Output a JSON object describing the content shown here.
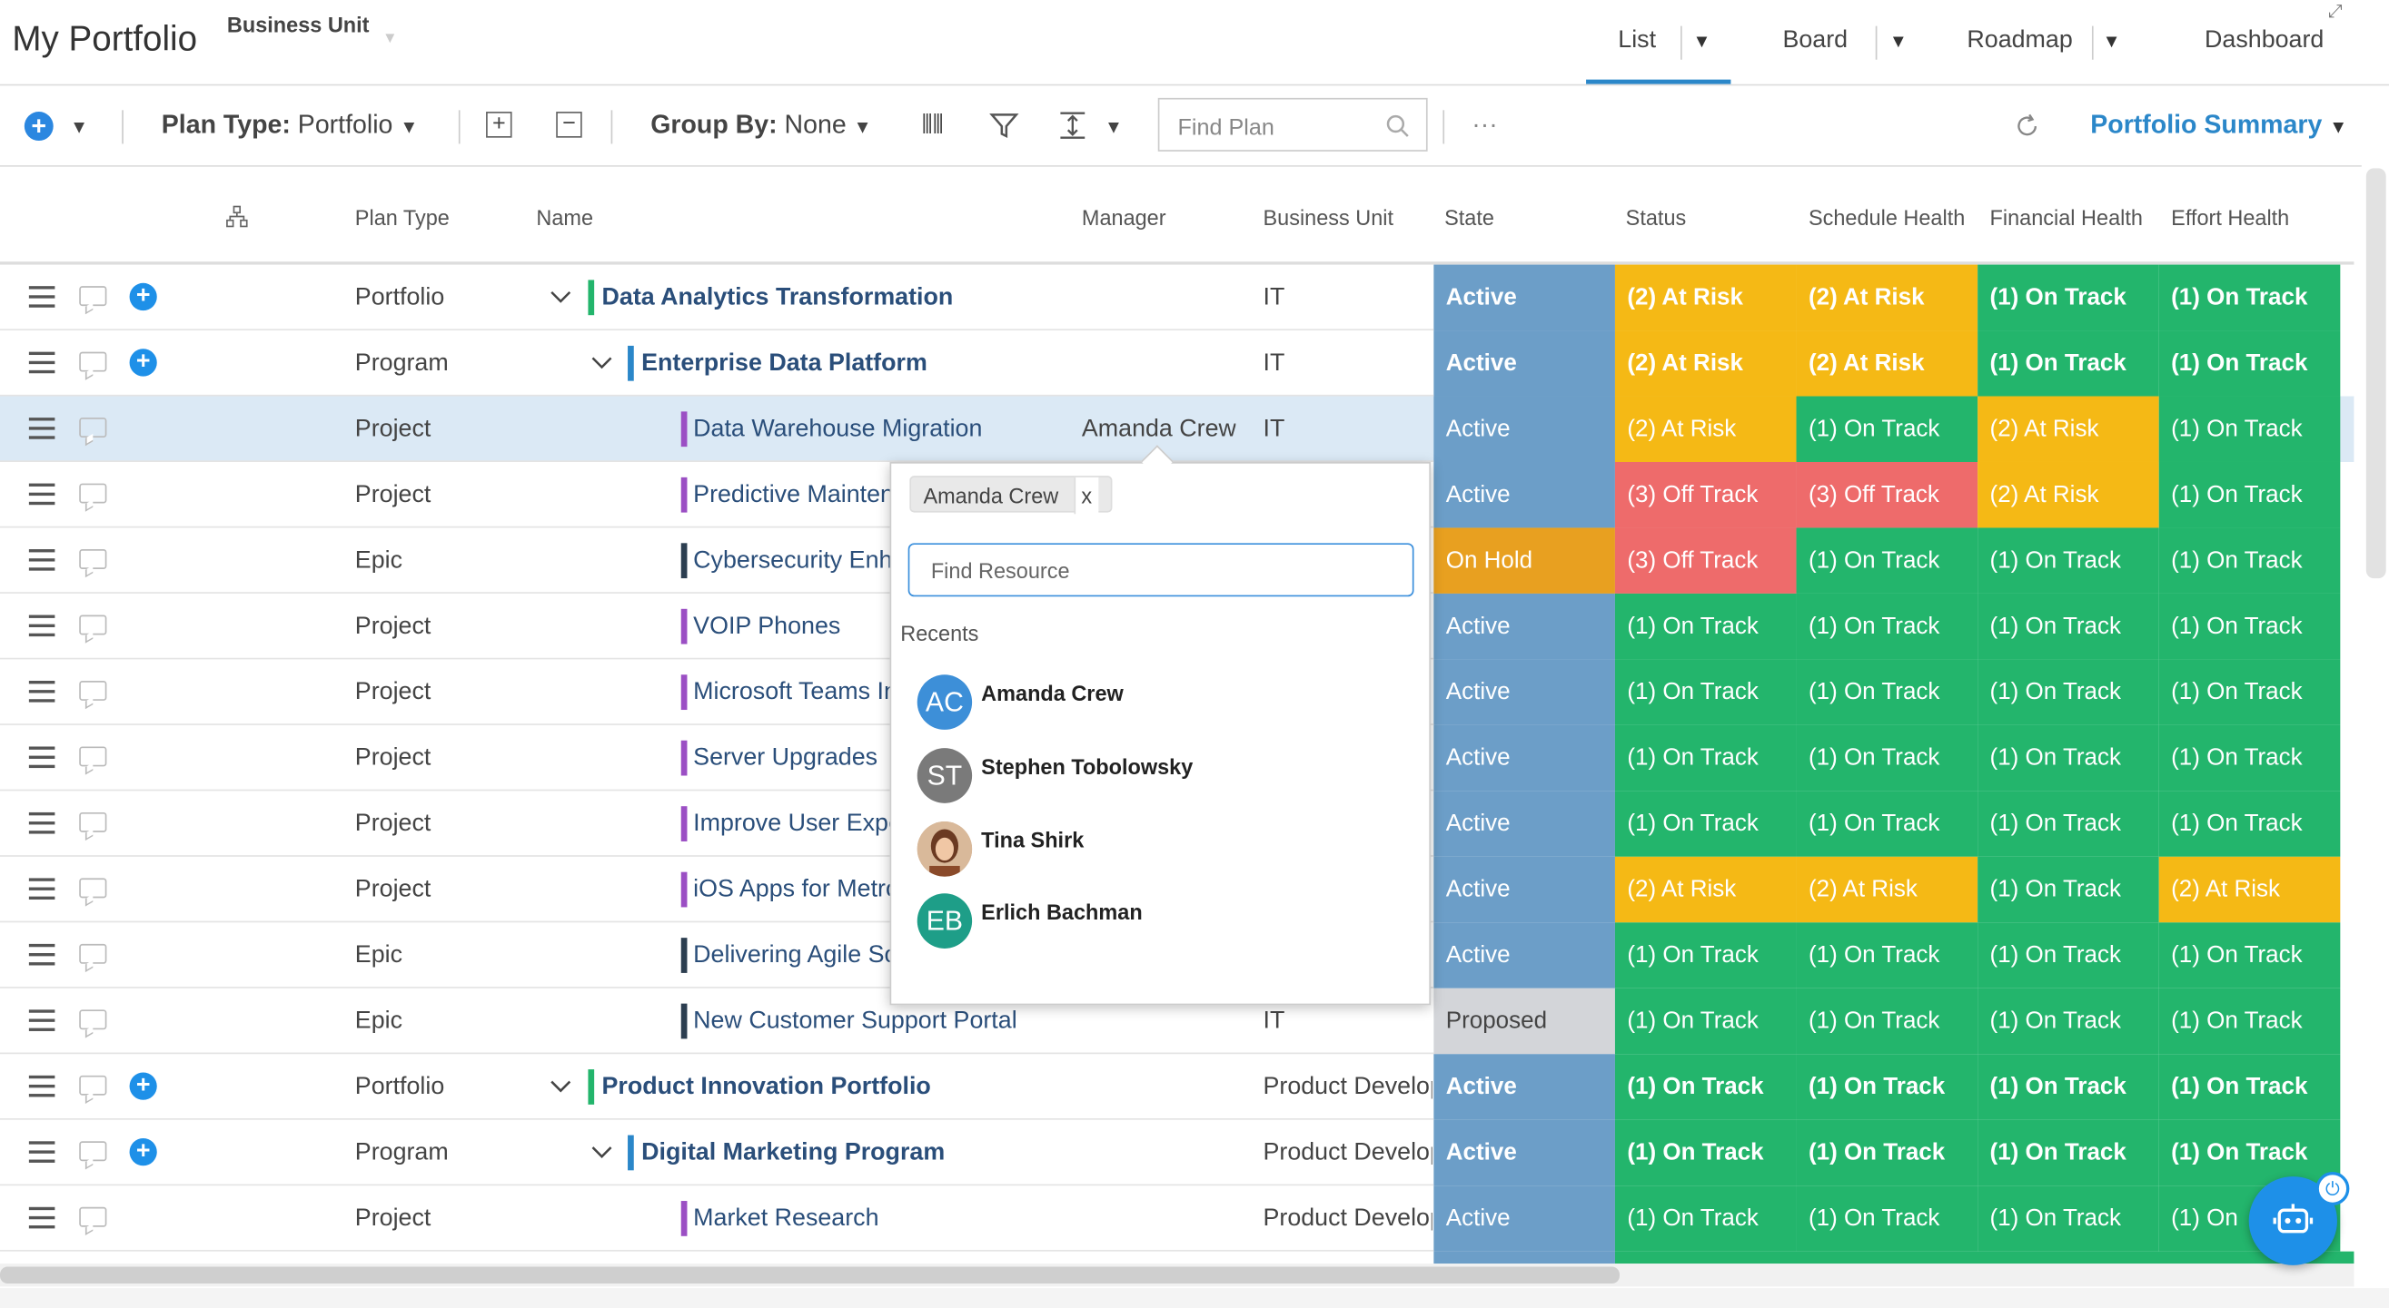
{
  "header": {
    "title": "My Portfolio",
    "business_unit_label": "Business Unit",
    "views": [
      "List",
      "Board",
      "Roadmap",
      "Dashboard"
    ]
  },
  "toolbar": {
    "plan_type_label": "Plan Type:",
    "plan_type_value": "Portfolio",
    "group_by_label": "Group By:",
    "group_by_value": "None",
    "find_plan_placeholder": "Find Plan",
    "more": "···",
    "portfolio_summary": "Portfolio Summary"
  },
  "columns": {
    "plan_type": "Plan Type",
    "name": "Name",
    "manager": "Manager",
    "business_unit": "Business Unit",
    "state": "State",
    "status": "Status",
    "schedule_health": "Schedule Health",
    "financial_health": "Financial Health",
    "effort_health": "Effort Health"
  },
  "rows": [
    {
      "plan_type": "Portfolio",
      "name": "Data Analytics Transformation",
      "manager": "",
      "bu": "IT",
      "state": "Active",
      "status": "(2) At Risk",
      "schedule": "(2) At Risk",
      "financial": "(1) On Track",
      "effort": "(1) On Track"
    },
    {
      "plan_type": "Program",
      "name": "Enterprise Data Platform",
      "manager": "",
      "bu": "IT",
      "state": "Active",
      "status": "(2) At Risk",
      "schedule": "(2) At Risk",
      "financial": "(1) On Track",
      "effort": "(1) On Track"
    },
    {
      "plan_type": "Project",
      "name": "Data Warehouse Migration",
      "manager": "Amanda Crew",
      "bu": "IT",
      "state": "Active",
      "status": "(2) At Risk",
      "schedule": "(1) On Track",
      "financial": "(2) At Risk",
      "effort": "(1) On Track"
    },
    {
      "plan_type": "Project",
      "name": "Predictive Mainten",
      "manager": "",
      "bu": "",
      "state": "Active",
      "status": "(3) Off Track",
      "schedule": "(3) Off Track",
      "financial": "(2) At Risk",
      "effort": "(1) On Track"
    },
    {
      "plan_type": "Epic",
      "name": "Cybersecurity Enha",
      "manager": "",
      "bu": "",
      "state": "On Hold",
      "status": "(3) Off Track",
      "schedule": "(1) On Track",
      "financial": "(1) On Track",
      "effort": "(1) On Track"
    },
    {
      "plan_type": "Project",
      "name": "VOIP Phones",
      "manager": "",
      "bu": "",
      "state": "Active",
      "status": "(1) On Track",
      "schedule": "(1) On Track",
      "financial": "(1) On Track",
      "effort": "(1) On Track"
    },
    {
      "plan_type": "Project",
      "name": "Microsoft Teams In",
      "manager": "",
      "bu": "",
      "state": "Active",
      "status": "(1) On Track",
      "schedule": "(1) On Track",
      "financial": "(1) On Track",
      "effort": "(1) On Track"
    },
    {
      "plan_type": "Project",
      "name": "Server Upgrades",
      "manager": "",
      "bu": "",
      "state": "Active",
      "status": "(1) On Track",
      "schedule": "(1) On Track",
      "financial": "(1) On Track",
      "effort": "(1) On Track"
    },
    {
      "plan_type": "Project",
      "name": "Improve User Expe",
      "manager": "",
      "bu": "",
      "state": "Active",
      "status": "(1) On Track",
      "schedule": "(1) On Track",
      "financial": "(1) On Track",
      "effort": "(1) On Track"
    },
    {
      "plan_type": "Project",
      "name": "iOS Apps for Metro",
      "manager": "",
      "bu": "",
      "state": "Active",
      "status": "(2) At Risk",
      "schedule": "(2) At Risk",
      "financial": "(1) On Track",
      "effort": "(2) At Risk"
    },
    {
      "plan_type": "Epic",
      "name": "Delivering Agile So",
      "manager": "",
      "bu": "",
      "state": "Active",
      "status": "(1) On Track",
      "schedule": "(1) On Track",
      "financial": "(1) On Track",
      "effort": "(1) On Track"
    },
    {
      "plan_type": "Epic",
      "name": "New Customer Support Portal",
      "manager": "",
      "bu": "IT",
      "state": "Proposed",
      "status": "(1) On Track",
      "schedule": "(1) On Track",
      "financial": "(1) On Track",
      "effort": "(1) On Track"
    },
    {
      "plan_type": "Portfolio",
      "name": "Product Innovation Portfolio",
      "manager": "",
      "bu": "Product Develop",
      "state": "Active",
      "status": "(1) On Track",
      "schedule": "(1) On Track",
      "financial": "(1) On Track",
      "effort": "(1) On Track"
    },
    {
      "plan_type": "Program",
      "name": "Digital Marketing Program",
      "manager": "",
      "bu": "Product Develop",
      "state": "Active",
      "status": "(1) On Track",
      "schedule": "(1) On Track",
      "financial": "(1) On Track",
      "effort": "(1) On Track"
    },
    {
      "plan_type": "Project",
      "name": "Market Research",
      "manager": "",
      "bu": "Product Develop",
      "state": "Active",
      "status": "(1) On Track",
      "schedule": "(1) On Track",
      "financial": "(1) On Track",
      "effort": "(1) On"
    }
  ],
  "popup": {
    "chip_label": "Amanda Crew",
    "chip_remove": "x",
    "search_placeholder": "Find Resource",
    "recents_label": "Recents",
    "people": [
      {
        "initials": "AC",
        "name": "Amanda Crew",
        "color": "#3d8fd8"
      },
      {
        "initials": "ST",
        "name": "Stephen Tobolowsky",
        "color": "#7a7a7a"
      },
      {
        "initials": "",
        "name": "Tina Shirk",
        "color": "#8a5a40"
      },
      {
        "initials": "EB",
        "name": "Erlich Bachman",
        "color": "#1e9e88"
      }
    ]
  },
  "colors": {
    "state_active": "#6c9ec8",
    "on_track": "#23b56c",
    "at_risk": "#f5b915",
    "off_track": "#ee6b6b",
    "on_hold": "#e8a020",
    "proposed": "#d3d5d9",
    "accent": "#2b87c9"
  }
}
